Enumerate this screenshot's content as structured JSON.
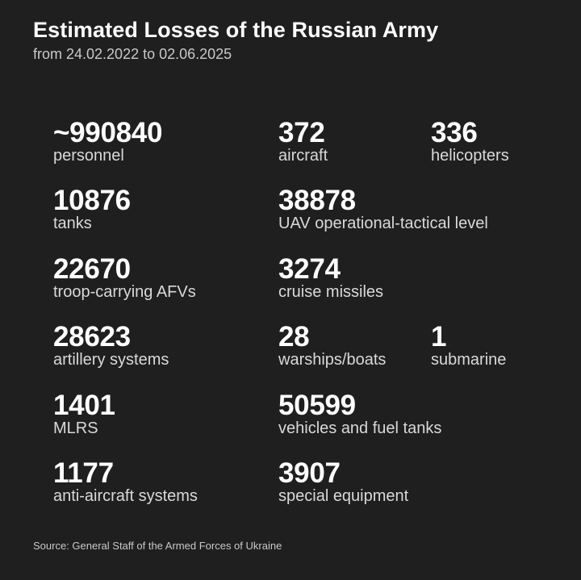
{
  "header": {
    "title": "Estimated Losses of the Russian Army",
    "subtitle": "from 24.02.2022 to 02.06.2025"
  },
  "stats": [
    {
      "value": "~990840",
      "label": "personnel"
    },
    {
      "value": "372",
      "label": "aircraft"
    },
    {
      "value": "336",
      "label": "helicopters"
    },
    {
      "value": "10876",
      "label": "tanks"
    },
    {
      "value": "38878",
      "label": "UAV operational-tactical level"
    },
    {
      "value": "22670",
      "label": "troop-carrying AFVs"
    },
    {
      "value": "3274",
      "label": "cruise missiles"
    },
    {
      "value": "28623",
      "label": "artillery systems"
    },
    {
      "value": "28",
      "label": "warships/boats"
    },
    {
      "value": "1",
      "label": "submarine"
    },
    {
      "value": "1401",
      "label": "MLRS"
    },
    {
      "value": "50599",
      "label": "vehicles and fuel tanks"
    },
    {
      "value": "1177",
      "label": "anti-aircraft systems"
    },
    {
      "value": "3907",
      "label": "special equipment"
    }
  ],
  "footer": {
    "source": "Source: General Staff of the Armed Forces of Ukraine"
  },
  "colors": {
    "background": "#1f1f1f",
    "text_primary": "#ffffff",
    "text_secondary": "#d9d9d9"
  }
}
